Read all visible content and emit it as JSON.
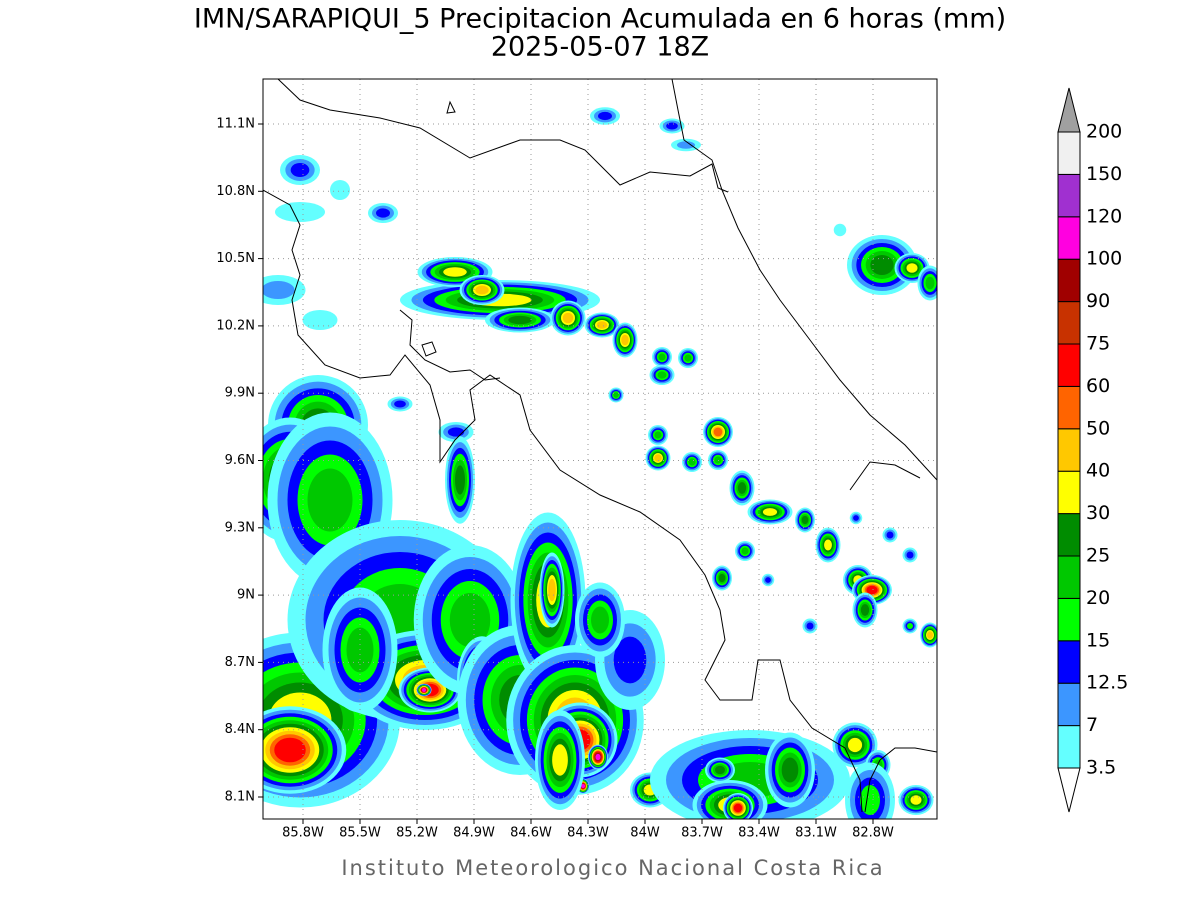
{
  "title": "IMN/SARAPIQUI_5 Precipitacion Acumulada en 6 horas (mm)",
  "subtitle": "2025-05-07 18Z",
  "map": {
    "lon_ticks": [
      "85.8W",
      "85.5W",
      "85.2W",
      "84.9W",
      "84.6W",
      "84.3W",
      "84W",
      "83.7W",
      "83.4W",
      "83.1W",
      "82.8W"
    ],
    "lat_ticks": [
      "11.1N",
      "10.8N",
      "10.5N",
      "10.2N",
      "9.9N",
      "9.6N",
      "9.3N",
      "9N",
      "8.7N",
      "8.4N",
      "8.1N"
    ]
  },
  "colorbar": {
    "levels": [
      3.5,
      7,
      12.5,
      15,
      20,
      25,
      30,
      40,
      50,
      60,
      75,
      90,
      100,
      120,
      150,
      200
    ],
    "band_colors": [
      "#64ffff",
      "#3c96ff",
      "#0000ff",
      "#00ff00",
      "#00c800",
      "#008c00",
      "#ffff00",
      "#ffc800",
      "#ff6400",
      "#ff0000",
      "#c83200",
      "#a00000",
      "#ff00e0",
      "#a030d0",
      "#f0f0f0"
    ],
    "over_color": "#a0a0a0",
    "under_color": "#ffffff"
  },
  "footer": "Instituto Meteorologico Nacional Costa Rica"
}
